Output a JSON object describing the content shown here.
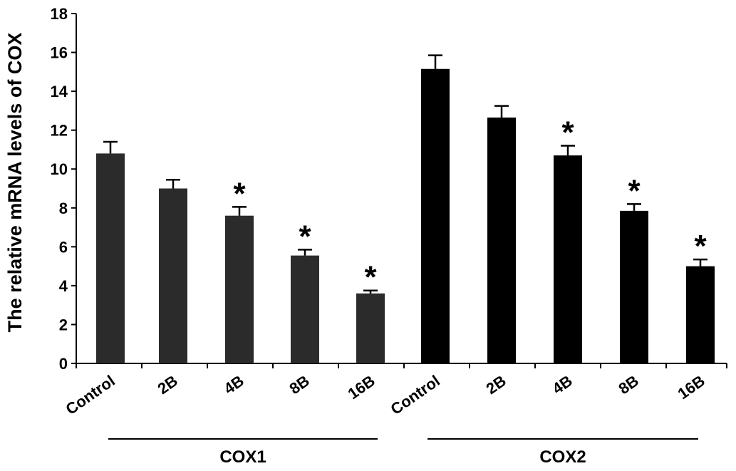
{
  "chart_data": {
    "type": "bar",
    "title": "",
    "ylabel": "The relative mRNA levels of COX",
    "ylim": [
      0,
      18
    ],
    "yticks": [
      0,
      2,
      4,
      6,
      8,
      10,
      12,
      14,
      16,
      18
    ],
    "groups": [
      {
        "name": "COX1",
        "color": "#2b2b2b",
        "categories": [
          "Control",
          "2B",
          "4B",
          "8B",
          "16B"
        ],
        "values": [
          10.8,
          9.0,
          7.6,
          5.55,
          3.6
        ],
        "errors": [
          0.6,
          0.45,
          0.45,
          0.3,
          0.15
        ],
        "significant": [
          false,
          false,
          true,
          true,
          true
        ]
      },
      {
        "name": "COX2",
        "color": "#000000",
        "categories": [
          "Control",
          "2B",
          "4B",
          "8B",
          "16B"
        ],
        "values": [
          15.15,
          12.65,
          10.7,
          7.85,
          5.0
        ],
        "errors": [
          0.7,
          0.6,
          0.5,
          0.35,
          0.35
        ],
        "significant": [
          false,
          false,
          true,
          true,
          true
        ]
      }
    ],
    "significance_marker": "*"
  }
}
